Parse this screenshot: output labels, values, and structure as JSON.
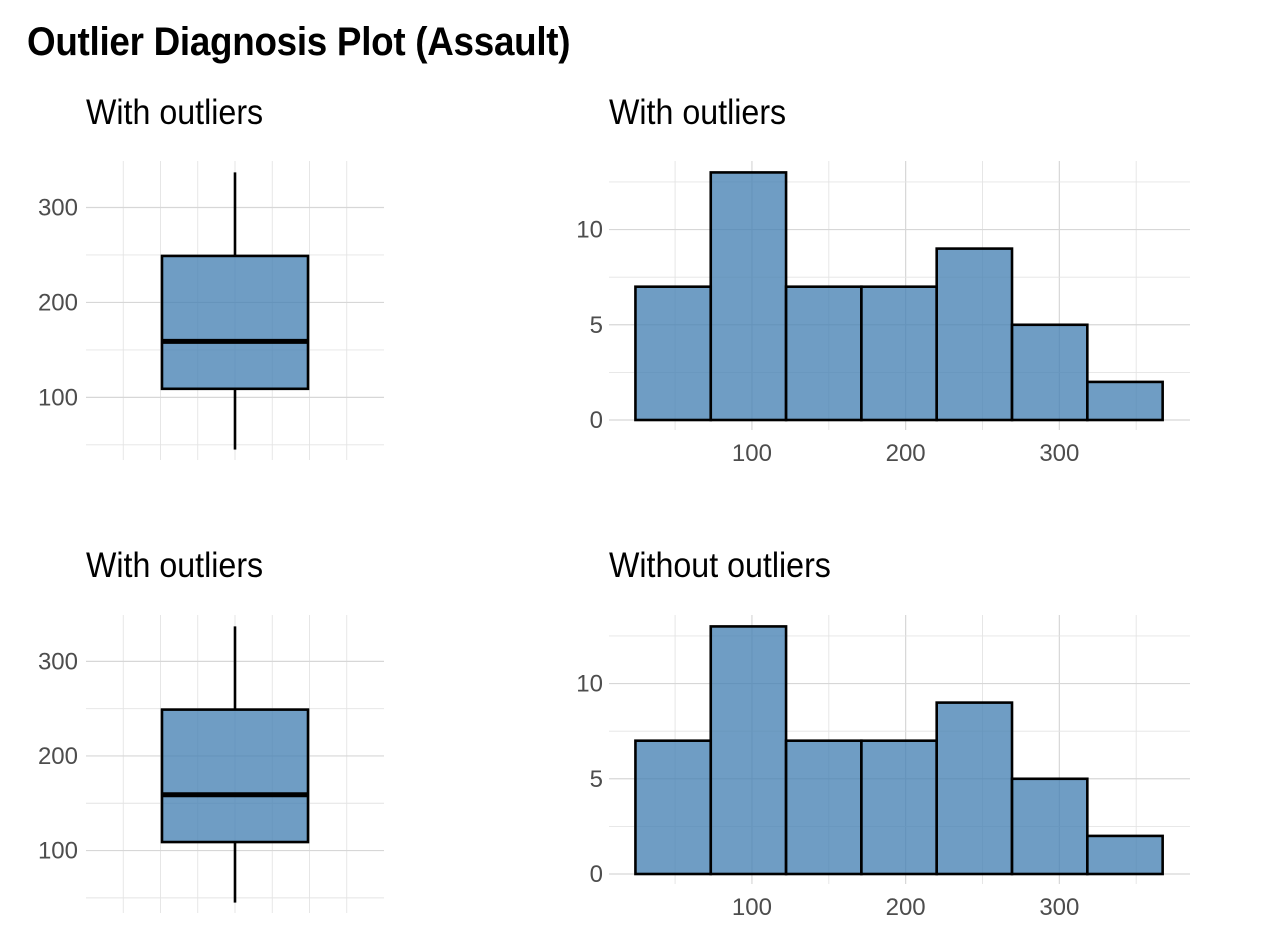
{
  "title": "Outlier Diagnosis Plot (Assault)",
  "colors": {
    "fill": "#4682B4",
    "outline": "#000000",
    "grid": "#d7d7d7",
    "tick_text": "#4d4d4d"
  },
  "chart_data": [
    {
      "type": "box",
      "title": "With outliers",
      "stats": {
        "min": 45,
        "q1": 109,
        "median": 159,
        "q3": 249,
        "max": 337
      },
      "ylim": [
        34,
        349
      ],
      "y_ticks": [
        100,
        200,
        300
      ]
    },
    {
      "type": "bar",
      "title": "With outliers",
      "bins": [
        {
          "x0": 24.2,
          "x1": 73.2,
          "count": 7
        },
        {
          "x0": 73.2,
          "x1": 122.2,
          "count": 13
        },
        {
          "x0": 122.2,
          "x1": 171.2,
          "count": 7
        },
        {
          "x0": 171.2,
          "x1": 220.2,
          "count": 7
        },
        {
          "x0": 220.2,
          "x1": 269.2,
          "count": 9
        },
        {
          "x0": 269.2,
          "x1": 318.2,
          "count": 5
        },
        {
          "x0": 318.2,
          "x1": 367.2,
          "count": 2
        }
      ],
      "xlim": [
        7,
        385
      ],
      "ylim": [
        0,
        13.6
      ],
      "x_ticks": [
        100,
        200,
        300
      ],
      "y_ticks": [
        0,
        5,
        10
      ]
    },
    {
      "type": "box",
      "title": "With outliers",
      "stats": {
        "min": 45,
        "q1": 109,
        "median": 159,
        "q3": 249,
        "max": 337
      },
      "ylim": [
        34,
        349
      ],
      "y_ticks": [
        100,
        200,
        300
      ]
    },
    {
      "type": "bar",
      "title": "Without outliers",
      "bins": [
        {
          "x0": 24.2,
          "x1": 73.2,
          "count": 7
        },
        {
          "x0": 73.2,
          "x1": 122.2,
          "count": 13
        },
        {
          "x0": 122.2,
          "x1": 171.2,
          "count": 7
        },
        {
          "x0": 171.2,
          "x1": 220.2,
          "count": 7
        },
        {
          "x0": 220.2,
          "x1": 269.2,
          "count": 9
        },
        {
          "x0": 269.2,
          "x1": 318.2,
          "count": 5
        },
        {
          "x0": 318.2,
          "x1": 367.2,
          "count": 2
        }
      ],
      "xlim": [
        7,
        385
      ],
      "ylim": [
        0,
        13.6
      ],
      "x_ticks": [
        100,
        200,
        300
      ],
      "y_ticks": [
        0,
        5,
        10
      ]
    }
  ]
}
